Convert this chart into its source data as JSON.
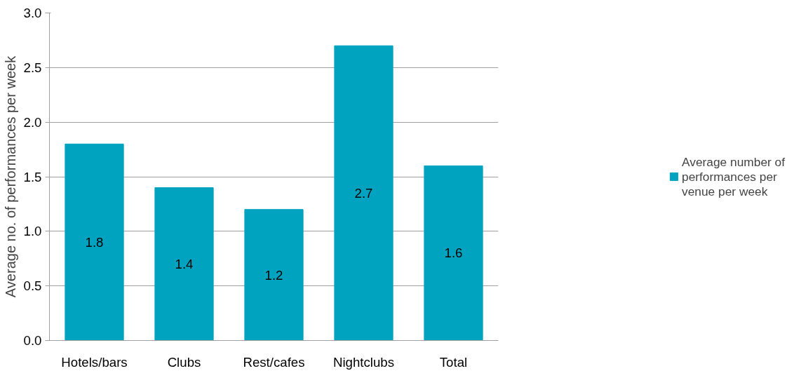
{
  "chart_data": {
    "type": "bar",
    "ylabel": "Average no. of performances per week",
    "categories": [
      "Hotels/bars",
      "Clubs",
      "Rest/cafes",
      "Nightclubs",
      "Total"
    ],
    "series": [
      {
        "name": "Average number of performances per venue per week",
        "color": "#00a3bf",
        "values": [
          1.8,
          1.4,
          1.2,
          2.7,
          1.6
        ]
      }
    ],
    "ylim": [
      0,
      3.0
    ],
    "yticks": [
      {
        "value": 0,
        "label": "0.0"
      },
      {
        "value": 0.5,
        "label": "0.5"
      },
      {
        "value": 1,
        "label": "1.0"
      },
      {
        "value": 1.5,
        "label": "1.5"
      },
      {
        "value": 2,
        "label": "2.0"
      },
      {
        "value": 2.5,
        "label": "2.5"
      },
      {
        "value": 3,
        "label": "3.0"
      }
    ],
    "grid": "y",
    "legend": "right",
    "data_labels": true
  }
}
